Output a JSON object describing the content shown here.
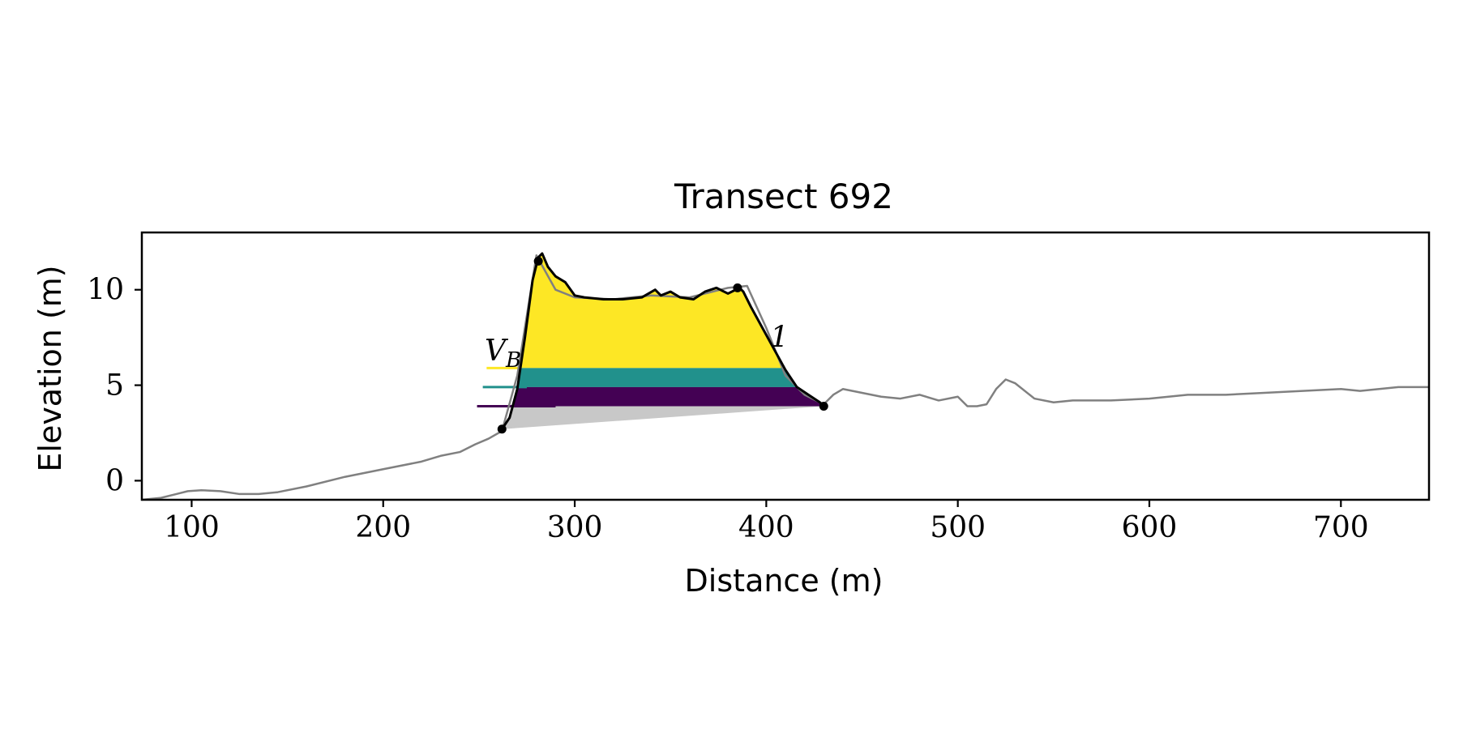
{
  "chart_data": {
    "type": "line",
    "title": "Transect 692",
    "xlabel": "Distance (m)",
    "ylabel": "Elevation (m)",
    "xlim": [
      74,
      746
    ],
    "ylim": [
      -1,
      13
    ],
    "x_ticks": [
      100,
      200,
      300,
      400,
      500,
      600,
      700
    ],
    "x_tick_labels": [
      "100",
      "200",
      "300",
      "400",
      "500",
      "600",
      "700"
    ],
    "y_ticks": [
      0,
      5,
      10
    ],
    "y_tick_labels": [
      "0",
      "5",
      "10"
    ],
    "grid": false,
    "legend": "none",
    "series": [
      {
        "color": "#808080",
        "x": [
          74,
          84,
          92,
          98,
          105,
          115,
          125,
          135,
          145,
          160,
          180,
          200,
          220,
          230,
          240,
          248,
          255,
          262,
          270,
          280,
          290,
          300,
          320,
          340,
          360,
          380,
          390,
          400,
          410,
          420,
          430,
          435,
          440,
          450,
          460,
          470,
          480,
          490,
          500,
          505,
          510,
          515,
          520,
          525,
          530,
          540,
          550,
          560,
          580,
          600,
          620,
          640,
          660,
          680,
          700,
          710,
          720,
          730,
          746
        ],
        "y": [
          -1.0,
          -0.9,
          -0.7,
          -0.55,
          -0.5,
          -0.55,
          -0.7,
          -0.7,
          -0.6,
          -0.3,
          0.2,
          0.6,
          1.0,
          1.3,
          1.5,
          1.9,
          2.2,
          2.6,
          5.5,
          11.8,
          10.0,
          9.6,
          9.5,
          9.7,
          9.6,
          10.1,
          10.2,
          8.0,
          5.5,
          4.5,
          4.0,
          4.5,
          4.8,
          4.6,
          4.4,
          4.3,
          4.5,
          4.2,
          4.4,
          3.9,
          3.9,
          4.0,
          4.8,
          5.3,
          5.1,
          4.3,
          4.1,
          4.2,
          4.2,
          4.3,
          4.5,
          4.5,
          4.6,
          4.7,
          4.8,
          4.7,
          4.8,
          4.9,
          4.9
        ]
      },
      {
        "color": "#000000",
        "x": [
          262,
          266,
          270,
          274,
          278,
          281,
          283,
          286,
          290,
          295,
          300,
          305,
          315,
          325,
          335,
          342,
          345,
          350,
          355,
          362,
          368,
          374,
          380,
          386,
          388,
          392,
          398,
          404,
          410,
          416,
          422,
          428,
          430
        ],
        "y": [
          2.7,
          3.3,
          4.8,
          7.5,
          10.5,
          11.7,
          11.9,
          11.2,
          10.7,
          10.4,
          9.7,
          9.6,
          9.5,
          9.5,
          9.6,
          10.0,
          9.7,
          9.9,
          9.6,
          9.5,
          9.9,
          10.1,
          9.8,
          10.1,
          9.9,
          9.1,
          8.0,
          6.9,
          5.8,
          4.9,
          4.5,
          4.1,
          3.9
        ]
      }
    ],
    "filled_bands": [
      {
        "color": "#fde725",
        "y_bottom": 5.9,
        "y_top": 11.9
      },
      {
        "color": "#21918c",
        "y_bottom": 4.9,
        "y_top": 5.9
      },
      {
        "color": "#440154",
        "y_bottom": 3.9,
        "y_top": 4.9
      }
    ],
    "base_polygon": {
      "color": "#c8c8c8",
      "x": [
        262,
        430
      ],
      "y": [
        2.7,
        3.9
      ]
    },
    "level_lines": [
      {
        "color": "#fde725",
        "y": 5.9,
        "x": [
          254,
          272
        ]
      },
      {
        "color": "#21918c",
        "y": 4.9,
        "x": [
          252,
          275
        ]
      },
      {
        "color": "#440154",
        "y": 3.9,
        "x": [
          249,
          290
        ]
      }
    ],
    "markers": {
      "x": [
        262,
        281,
        385,
        430
      ],
      "y": [
        2.7,
        11.5,
        10.1,
        3.9
      ]
    },
    "annotations": [
      {
        "text": "V",
        "subscript": "B",
        "x": 253,
        "y": 6.3
      },
      {
        "text": "1",
        "x": 402,
        "y": 7.0
      }
    ]
  }
}
